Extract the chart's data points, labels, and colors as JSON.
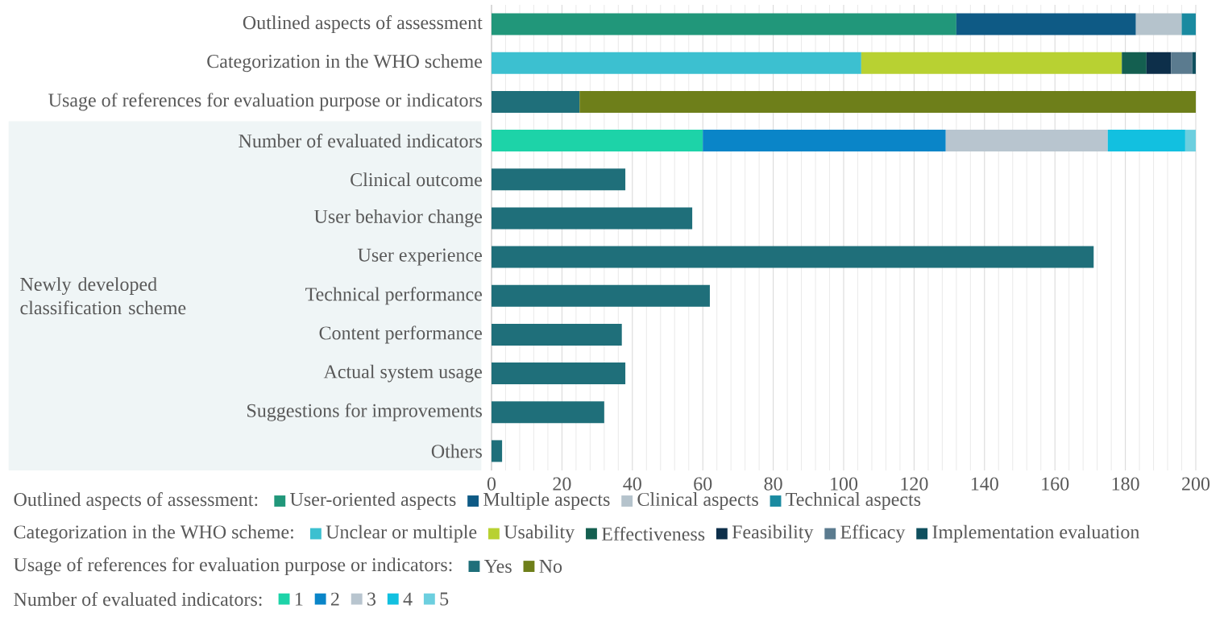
{
  "chart_data": {
    "type": "bar",
    "orientation": "horizontal",
    "stacked": true,
    "categories": [
      "Outlined aspects of assessment",
      "Categorization in the WHO scheme",
      "Usage of references for evaluation purpose or indicators",
      "Number of evaluated indicators",
      "Clinical outcome",
      "User behavior change",
      "User experience",
      "Technical performance",
      "Content performance",
      "Actual system usage",
      "Suggestions for improvements",
      "Others"
    ],
    "series": [
      {
        "name": "User-oriented aspects",
        "color": "#21977a",
        "values": [
          132,
          null,
          null,
          null,
          null,
          null,
          null,
          null,
          null,
          null,
          null,
          null
        ]
      },
      {
        "name": "Multiple aspects",
        "color": "#0e5a85",
        "values": [
          51,
          null,
          null,
          null,
          null,
          null,
          null,
          null,
          null,
          null,
          null,
          null
        ]
      },
      {
        "name": "Clinical aspects",
        "color": "#b5c3cc",
        "values": [
          13,
          null,
          null,
          null,
          null,
          null,
          null,
          null,
          null,
          null,
          null,
          null
        ]
      },
      {
        "name": "Technical aspects",
        "color": "#1a8aa0",
        "values": [
          4,
          null,
          null,
          null,
          null,
          null,
          null,
          null,
          null,
          null,
          null,
          null
        ]
      },
      {
        "name": "Unclear or multiple",
        "color": "#3cc0d0",
        "values": [
          null,
          105,
          null,
          null,
          null,
          null,
          null,
          null,
          null,
          null,
          null,
          null
        ]
      },
      {
        "name": "Usability",
        "color": "#b8d132",
        "values": [
          null,
          74,
          null,
          null,
          null,
          null,
          null,
          null,
          null,
          null,
          null,
          null
        ]
      },
      {
        "name": "Effectiveness",
        "color": "#145f50",
        "values": [
          null,
          7,
          null,
          null,
          null,
          null,
          null,
          null,
          null,
          null,
          null,
          null
        ]
      },
      {
        "name": "Feasibility",
        "color": "#0d2f4a",
        "values": [
          null,
          7,
          null,
          null,
          null,
          null,
          null,
          null,
          null,
          null,
          null,
          null
        ]
      },
      {
        "name": "Efficacy",
        "color": "#5b7b8f",
        "values": [
          null,
          6,
          null,
          null,
          null,
          null,
          null,
          null,
          null,
          null,
          null,
          null
        ]
      },
      {
        "name": "Implementation evaluation",
        "color": "#0f4f5e",
        "values": [
          null,
          1,
          null,
          null,
          null,
          null,
          null,
          null,
          null,
          null,
          null,
          null
        ]
      },
      {
        "name": "Yes",
        "color": "#1f6f7a",
        "values": [
          null,
          null,
          25,
          null,
          null,
          null,
          null,
          null,
          null,
          null,
          null,
          null
        ]
      },
      {
        "name": "No",
        "color": "#6e7f1a",
        "values": [
          null,
          null,
          175,
          null,
          null,
          null,
          null,
          null,
          null,
          null,
          null,
          null
        ]
      },
      {
        "name": "1",
        "color": "#1dd3a8",
        "values": [
          null,
          null,
          null,
          60,
          null,
          null,
          null,
          null,
          null,
          null,
          null,
          null
        ]
      },
      {
        "name": "2",
        "color": "#0a85c8",
        "values": [
          null,
          null,
          null,
          69,
          null,
          null,
          null,
          null,
          null,
          null,
          null,
          null
        ]
      },
      {
        "name": "3",
        "color": "#b8c5cf",
        "values": [
          null,
          null,
          null,
          46,
          null,
          null,
          null,
          null,
          null,
          null,
          null,
          null
        ]
      },
      {
        "name": "4",
        "color": "#12c0e0",
        "values": [
          null,
          null,
          null,
          22,
          null,
          null,
          null,
          null,
          null,
          null,
          null,
          null
        ]
      },
      {
        "name": "5",
        "color": "#6ccfdf",
        "values": [
          null,
          null,
          null,
          3,
          null,
          null,
          null,
          null,
          null,
          null,
          null,
          null
        ]
      },
      {
        "color": "#1f6f7a",
        "values": [
          null,
          null,
          null,
          null,
          38,
          57,
          171,
          62,
          37,
          38,
          32,
          3
        ]
      }
    ],
    "xlim": [
      0,
      200
    ],
    "xticks": [
      0,
      20,
      40,
      60,
      80,
      100,
      120,
      140,
      160,
      180,
      200
    ],
    "grid": "x",
    "legend": "bottom",
    "annotations": [
      "Outlined aspects of assessment:",
      "Categorization in the WHO scheme:",
      "Usage of references for evaluation purpose or indicators:",
      "Number of evaluated indicators:",
      "Newly developed classification scheme"
    ]
  }
}
